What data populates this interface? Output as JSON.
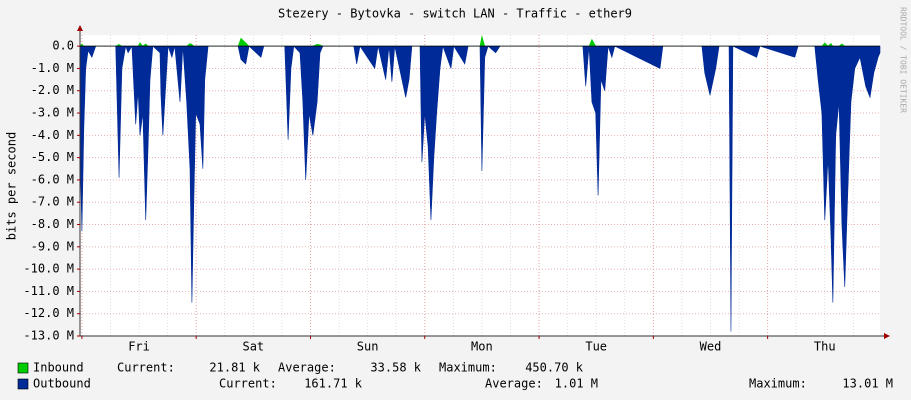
{
  "chart_data": {
    "type": "area",
    "title": "Stezery - Bytovka - switch LAN - Traffic - ether9",
    "ylabel": "bits per second",
    "watermark": "RRDTOOL / TOBI OETIKER",
    "xlim": [
      -0.4,
      167.6
    ],
    "xticks": [
      {
        "value": 12,
        "label": "Fri"
      },
      {
        "value": 36,
        "label": "Sat"
      },
      {
        "value": 60,
        "label": "Sun"
      },
      {
        "value": 84,
        "label": "Mon"
      },
      {
        "value": 108,
        "label": "Tue"
      },
      {
        "value": 132,
        "label": "Wed"
      },
      {
        "value": 156,
        "label": "Thu"
      }
    ],
    "xmajorticks": [
      0,
      24,
      48,
      72,
      96,
      120,
      144
    ],
    "xminorticks": [
      6,
      12,
      18,
      30,
      36,
      42,
      54,
      60,
      66,
      78,
      84,
      90,
      102,
      108,
      114,
      126,
      132,
      138,
      150,
      156,
      162
    ],
    "ylim": [
      -13000000,
      500000
    ],
    "yticks": [
      {
        "value": 0,
        "label": "0.0"
      },
      {
        "value": -1000000,
        "label": "-1.0 M"
      },
      {
        "value": -2000000,
        "label": "-2.0 M"
      },
      {
        "value": -3000000,
        "label": "-3.0 M"
      },
      {
        "value": -4000000,
        "label": "-4.0 M"
      },
      {
        "value": -5000000,
        "label": "-5.0 M"
      },
      {
        "value": -6000000,
        "label": "-6.0 M"
      },
      {
        "value": -7000000,
        "label": "-7.0 M"
      },
      {
        "value": -8000000,
        "label": "-8.0 M"
      },
      {
        "value": -9000000,
        "label": "-9.0 M"
      },
      {
        "value": -10000000,
        "label": "-10.0 M"
      },
      {
        "value": -11000000,
        "label": "-11.0 M"
      },
      {
        "value": -12000000,
        "label": "-12.0 M"
      },
      {
        "value": -13000000,
        "label": "-13.0 M"
      }
    ],
    "grid": true,
    "legend_labels": {
      "current": "Current:",
      "average": "Average:",
      "maximum": "Maximum:"
    },
    "x": [
      -0.4,
      0.0,
      0.4,
      0.8,
      1.3,
      2.1,
      2.9,
      7.1,
      7.8,
      8.4,
      9.2,
      9.7,
      10.5,
      11.3,
      11.8,
      12.2,
      12.8,
      13.4,
      13.9,
      14.3,
      14.9,
      16.4,
      16.6,
      17.0,
      17.4,
      18.1,
      18.9,
      19.5,
      20.6,
      21.2,
      22.0,
      22.7,
      23.1,
      23.5,
      23.9,
      24.8,
      25.4,
      25.8,
      26.5,
      32.8,
      33.4,
      34.4,
      35.1,
      37.6,
      38.2,
      42.6,
      43.3,
      43.9,
      44.5,
      45.8,
      46.4,
      47.0,
      47.7,
      48.5,
      49.4,
      50.0,
      50.6,
      57.1,
      57.7,
      58.4,
      61.5,
      62.2,
      63.8,
      64.5,
      65.1,
      65.7,
      67.2,
      68.0,
      68.7,
      69.3,
      71.0,
      71.4,
      72.0,
      72.7,
      73.3,
      73.9,
      74.5,
      75.2,
      75.8,
      77.5,
      78.1,
      80.4,
      81.1,
      83.6,
      84.0,
      84.6,
      85.3,
      86.9,
      87.8,
      105.2,
      105.8,
      106.5,
      107.1,
      107.9,
      108.4,
      109.0,
      109.8,
      110.5,
      111.3,
      111.9,
      121.4,
      122.0,
      130.2,
      130.8,
      131.9,
      133.1,
      133.8,
      135.9,
      136.3,
      136.7,
      141.7,
      142.4,
      149.7,
      150.4,
      153.9,
      154.6,
      155.4,
      156.0,
      156.7,
      157.3,
      157.7,
      158.3,
      159.0,
      159.6,
      160.2,
      160.8,
      161.5,
      162.3,
      163.4,
      164.6,
      165.5,
      166.3,
      167.2,
      167.6
    ],
    "series": [
      {
        "name": "Inbound",
        "color": "#00cc00",
        "current": "21.81 k",
        "average": "33.58 k",
        "maximum": "450.70 k",
        "values": [
          0,
          100000,
          0,
          0,
          0,
          0,
          0,
          0,
          80000,
          0,
          0,
          0,
          0,
          0,
          0,
          150000,
          0,
          100000,
          0,
          0,
          0,
          0,
          0,
          0,
          0,
          0,
          0,
          0,
          0,
          0,
          0,
          120000,
          80000,
          0,
          0,
          0,
          0,
          0,
          0,
          0,
          350000,
          150000,
          0,
          0,
          0,
          0,
          0,
          0,
          0,
          0,
          0,
          0,
          0,
          0,
          80000,
          60000,
          0,
          0,
          0,
          0,
          0,
          0,
          0,
          0,
          0,
          0,
          0,
          0,
          0,
          0,
          0,
          0,
          0,
          0,
          0,
          0,
          0,
          0,
          0,
          0,
          0,
          0,
          0,
          0,
          450000,
          0,
          0,
          0,
          0,
          0,
          0,
          0,
          300000,
          0,
          0,
          0,
          0,
          0,
          0,
          0,
          0,
          0,
          0,
          0,
          0,
          0,
          0,
          0,
          0,
          0,
          0,
          0,
          0,
          0,
          0,
          0,
          0,
          150000,
          0,
          120000,
          0,
          0,
          0,
          100000,
          0,
          0,
          0,
          0,
          0,
          0,
          0,
          0,
          0,
          0
        ]
      },
      {
        "name": "Outbound",
        "color": "#002a97",
        "current": "161.71 k",
        "average": "1.01 M",
        "maximum": "13.01 M",
        "values": [
          -4500000,
          -8300000,
          -3700000,
          -1000000,
          -200000,
          -500000,
          0,
          0,
          -5900000,
          -1000000,
          0,
          -300000,
          0,
          -3500000,
          -2000000,
          -4000000,
          -3000000,
          -7800000,
          -4500000,
          -1500000,
          0,
          -300000,
          -2200000,
          -4000000,
          -2500000,
          0,
          -500000,
          0,
          -2500000,
          0,
          -2500000,
          -5500000,
          -11500000,
          -7000000,
          -3000000,
          -3500000,
          -5500000,
          -1500000,
          0,
          0,
          -600000,
          -800000,
          0,
          -500000,
          0,
          0,
          -4200000,
          -1000000,
          0,
          -300000,
          -2500000,
          -6000000,
          -3000000,
          -4000000,
          -2500000,
          -300000,
          0,
          0,
          -800000,
          0,
          -1000000,
          0,
          -1500000,
          0,
          -1600000,
          0,
          -1500000,
          -2300000,
          -1500000,
          0,
          0,
          -5200000,
          -3000000,
          -4500000,
          -7800000,
          -5000000,
          -3000000,
          -1000000,
          0,
          -1000000,
          0,
          -800000,
          0,
          0,
          -5600000,
          -500000,
          0,
          -300000,
          0,
          0,
          -1800000,
          0,
          -2500000,
          -3000000,
          -6700000,
          -1500000,
          -2000000,
          0,
          -500000,
          0,
          -1000000,
          0,
          0,
          -1200000,
          -2200000,
          -1000000,
          0,
          0,
          -12800000,
          0,
          -500000,
          0,
          -500000,
          0,
          0,
          -1500000,
          -3000000,
          -7800000,
          -5000000,
          -8500000,
          -11500000,
          -4000000,
          -2500000,
          -8000000,
          -10800000,
          -6800000,
          -2500000,
          -1000000,
          -500000,
          -1800000,
          -2300000,
          -1200000,
          -500000,
          -300000
        ]
      }
    ]
  }
}
